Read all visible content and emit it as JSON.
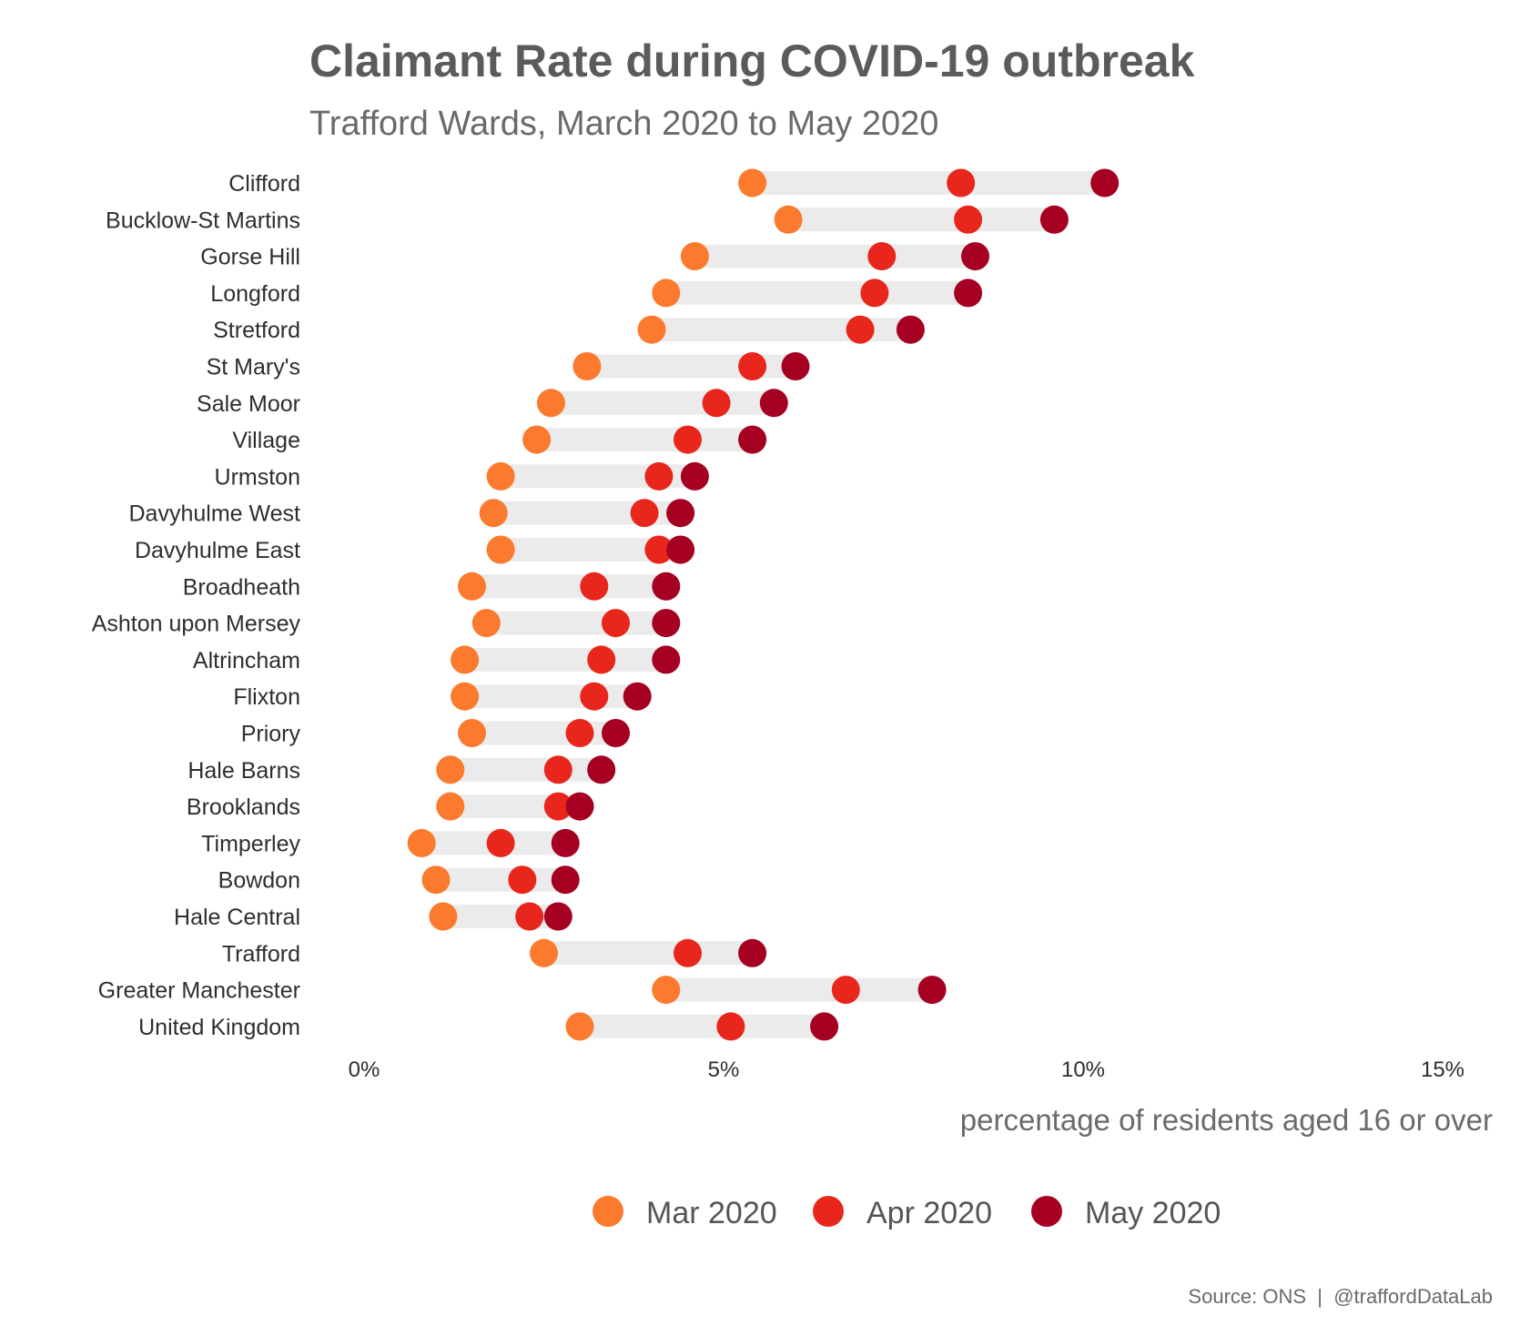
{
  "chart_data": {
    "type": "dot-range",
    "title": "Claimant Rate during COVID-19 outbreak",
    "subtitle": "Trafford Wards, March 2020 to May 2020",
    "xlabel": "percentage of residents aged 16 or over",
    "xlim": [
      0,
      15
    ],
    "x_ticks": [
      {
        "value": 0,
        "label": "0%"
      },
      {
        "value": 5,
        "label": "5%"
      },
      {
        "value": 10,
        "label": "10%"
      },
      {
        "value": 15,
        "label": "15%"
      }
    ],
    "grid": false,
    "legend_position": "bottom",
    "categories": [
      "Clifford",
      "Bucklow-St Martins",
      "Gorse Hill",
      "Longford",
      "Stretford",
      "St Mary's",
      "Sale Moor",
      "Village",
      "Urmston",
      "Davyhulme West",
      "Davyhulme East",
      "Broadheath",
      "Ashton upon Mersey",
      "Altrincham",
      "Flixton",
      "Priory",
      "Hale Barns",
      "Brooklands",
      "Timperley",
      "Bowdon",
      "Hale Central",
      "Trafford",
      "Greater Manchester",
      "United Kingdom"
    ],
    "series": [
      {
        "name": "Mar 2020",
        "color": "#fb7a2e",
        "values": [
          5.4,
          5.9,
          4.6,
          4.2,
          4.0,
          3.1,
          2.6,
          2.4,
          1.9,
          1.8,
          1.9,
          1.5,
          1.7,
          1.4,
          1.4,
          1.5,
          1.2,
          1.2,
          0.8,
          1.0,
          1.1,
          2.5,
          4.2,
          3.0
        ]
      },
      {
        "name": "Apr 2020",
        "color": "#e8261b",
        "values": [
          8.3,
          8.4,
          7.2,
          7.1,
          6.9,
          5.4,
          4.9,
          4.5,
          4.1,
          3.9,
          4.1,
          3.2,
          3.5,
          3.3,
          3.2,
          3.0,
          2.7,
          2.7,
          1.9,
          2.2,
          2.3,
          4.5,
          6.7,
          5.1
        ]
      },
      {
        "name": "May 2020",
        "color": "#a50022",
        "values": [
          10.3,
          9.6,
          8.5,
          8.4,
          7.6,
          6.0,
          5.7,
          5.4,
          4.6,
          4.4,
          4.4,
          4.2,
          4.2,
          4.2,
          3.8,
          3.5,
          3.3,
          3.0,
          2.8,
          2.8,
          2.7,
          5.4,
          7.9,
          6.4
        ]
      }
    ],
    "range_bar_color": "#ebebeb"
  },
  "caption": "Source: ONS  |  @traffordDataLab"
}
